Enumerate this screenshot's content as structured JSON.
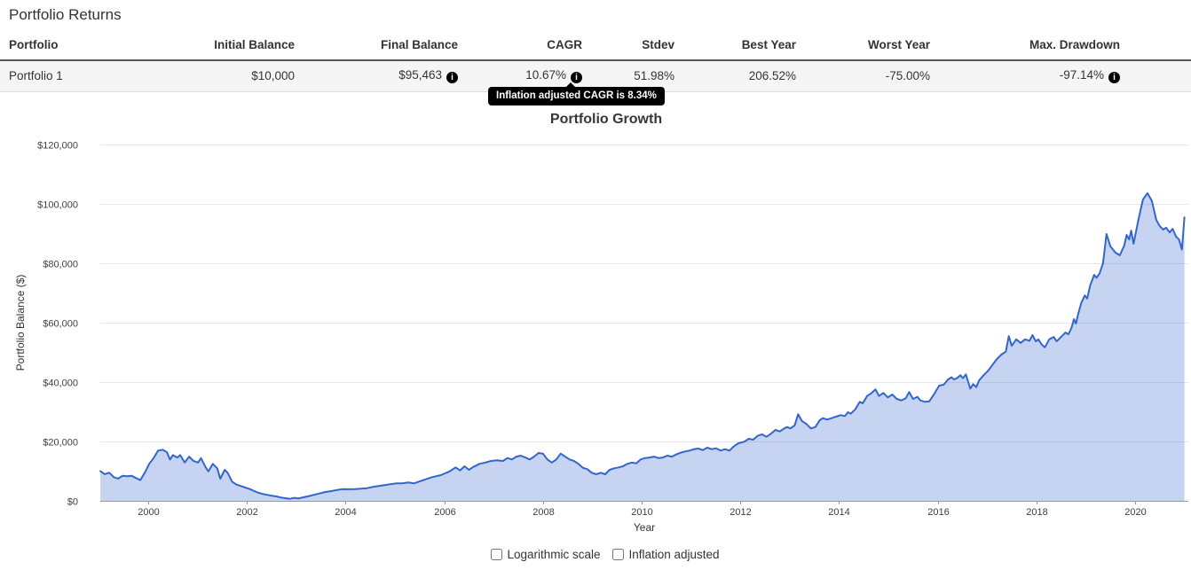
{
  "page": {
    "title": "Portfolio Returns"
  },
  "icons": {
    "info_glyph": "i"
  },
  "table": {
    "columns": [
      "Portfolio",
      "Initial Balance",
      "Final Balance",
      "CAGR",
      "Stdev",
      "Best Year",
      "Worst Year",
      "Max. Drawdown"
    ],
    "rows": [
      {
        "cells": [
          "Portfolio 1",
          "$10,000",
          "$95,463",
          "10.67%",
          "51.98%",
          "206.52%",
          "-75.00%",
          "-97.14%"
        ],
        "info_on": [
          2,
          3,
          7
        ]
      }
    ]
  },
  "tooltip": {
    "text": "Inflation adjusted CAGR is 8.34%"
  },
  "controls": {
    "logarithmic_label": "Logarithmic scale",
    "logarithmic_checked": false,
    "inflation_label": "Inflation adjusted",
    "inflation_checked": false
  },
  "chart_data": {
    "type": "area",
    "title": "Portfolio Growth",
    "xlabel": "Year",
    "ylabel": "Portfolio Balance ($)",
    "grid": true,
    "legend": "none",
    "ylim": [
      0,
      120000
    ],
    "xlim": [
      1999.03,
      2021.06
    ],
    "y_tick_values": [
      0,
      20000,
      40000,
      60000,
      80000,
      100000,
      120000
    ],
    "y_tick_labels": [
      "$0",
      "$20,000",
      "$40,000",
      "$60,000",
      "$80,000",
      "$100,000",
      "$120,000"
    ],
    "x_tick_values": [
      2000,
      2002,
      2004,
      2006,
      2008,
      2010,
      2012,
      2014,
      2016,
      2018,
      2020
    ],
    "line_color": "#3366cc",
    "fill_color": "rgba(51,102,204,0.28)",
    "series": [
      {
        "name": "Portfolio 1",
        "points": [
          [
            1999.03,
            10000
          ],
          [
            1999.12,
            9000
          ],
          [
            1999.21,
            9500
          ],
          [
            1999.3,
            8000
          ],
          [
            1999.39,
            7500
          ],
          [
            1999.48,
            8450
          ],
          [
            1999.57,
            8270
          ],
          [
            1999.66,
            8450
          ],
          [
            1999.75,
            7700
          ],
          [
            1999.84,
            7000
          ],
          [
            1999.93,
            9460
          ],
          [
            2000.02,
            12450
          ],
          [
            2000.11,
            14420
          ],
          [
            2000.2,
            16900
          ],
          [
            2000.29,
            17220
          ],
          [
            2000.38,
            16400
          ],
          [
            2000.44,
            13900
          ],
          [
            2000.5,
            15400
          ],
          [
            2000.59,
            14600
          ],
          [
            2000.65,
            15400
          ],
          [
            2000.74,
            12900
          ],
          [
            2000.83,
            14900
          ],
          [
            2000.92,
            13400
          ],
          [
            2001.01,
            12900
          ],
          [
            2001.07,
            14400
          ],
          [
            2001.16,
            11400
          ],
          [
            2001.22,
            9940
          ],
          [
            2001.31,
            12450
          ],
          [
            2001.4,
            10950
          ],
          [
            2001.46,
            7460
          ],
          [
            2001.55,
            10450
          ],
          [
            2001.61,
            9460
          ],
          [
            2001.7,
            6480
          ],
          [
            2001.79,
            5460
          ],
          [
            2001.88,
            4980
          ],
          [
            2001.97,
            4480
          ],
          [
            2002.06,
            3980
          ],
          [
            2002.15,
            3280
          ],
          [
            2002.24,
            2690
          ],
          [
            2002.33,
            2290
          ],
          [
            2002.42,
            2000
          ],
          [
            2002.51,
            1700
          ],
          [
            2002.6,
            1490
          ],
          [
            2002.69,
            1100
          ],
          [
            2002.78,
            900
          ],
          [
            2002.87,
            700
          ],
          [
            2002.96,
            1000
          ],
          [
            2003.05,
            800
          ],
          [
            2003.14,
            1190
          ],
          [
            2003.23,
            1490
          ],
          [
            2003.35,
            2000
          ],
          [
            2003.47,
            2490
          ],
          [
            2003.59,
            2990
          ],
          [
            2003.71,
            3280
          ],
          [
            2003.83,
            3670
          ],
          [
            2003.95,
            3970
          ],
          [
            2004.07,
            3900
          ],
          [
            2004.19,
            3970
          ],
          [
            2004.31,
            4100
          ],
          [
            2004.43,
            4270
          ],
          [
            2004.55,
            4690
          ],
          [
            2004.67,
            4980
          ],
          [
            2004.79,
            5280
          ],
          [
            2004.91,
            5600
          ],
          [
            2005.03,
            5880
          ],
          [
            2005.15,
            5880
          ],
          [
            2005.27,
            6180
          ],
          [
            2005.39,
            5900
          ],
          [
            2005.57,
            6960
          ],
          [
            2005.75,
            7970
          ],
          [
            2005.93,
            8660
          ],
          [
            2006.11,
            9940
          ],
          [
            2006.23,
            11250
          ],
          [
            2006.32,
            10240
          ],
          [
            2006.41,
            11640
          ],
          [
            2006.5,
            10450
          ],
          [
            2006.59,
            11430
          ],
          [
            2006.71,
            12450
          ],
          [
            2006.83,
            12900
          ],
          [
            2006.95,
            13430
          ],
          [
            2007.07,
            13640
          ],
          [
            2007.19,
            13430
          ],
          [
            2007.28,
            14420
          ],
          [
            2007.37,
            13930
          ],
          [
            2007.46,
            14900
          ],
          [
            2007.55,
            15220
          ],
          [
            2007.64,
            14600
          ],
          [
            2007.73,
            13930
          ],
          [
            2007.82,
            14900
          ],
          [
            2007.91,
            16120
          ],
          [
            2008.0,
            15920
          ],
          [
            2008.09,
            13930
          ],
          [
            2008.18,
            12900
          ],
          [
            2008.27,
            13930
          ],
          [
            2008.36,
            15920
          ],
          [
            2008.45,
            14900
          ],
          [
            2008.54,
            13930
          ],
          [
            2008.63,
            13430
          ],
          [
            2008.72,
            12450
          ],
          [
            2008.81,
            11140
          ],
          [
            2008.9,
            10660
          ],
          [
            2008.99,
            9460
          ],
          [
            2009.08,
            8960
          ],
          [
            2009.17,
            9460
          ],
          [
            2009.26,
            8960
          ],
          [
            2009.35,
            10450
          ],
          [
            2009.44,
            10950
          ],
          [
            2009.53,
            11250
          ],
          [
            2009.62,
            11640
          ],
          [
            2009.71,
            12450
          ],
          [
            2009.8,
            12900
          ],
          [
            2009.89,
            12640
          ],
          [
            2009.98,
            13930
          ],
          [
            2010.07,
            14420
          ],
          [
            2010.16,
            14600
          ],
          [
            2010.25,
            14900
          ],
          [
            2010.34,
            14420
          ],
          [
            2010.43,
            14600
          ],
          [
            2010.52,
            15220
          ],
          [
            2010.61,
            14900
          ],
          [
            2010.7,
            15610
          ],
          [
            2010.79,
            16210
          ],
          [
            2010.88,
            16620
          ],
          [
            2010.97,
            16920
          ],
          [
            2011.06,
            17400
          ],
          [
            2011.15,
            17610
          ],
          [
            2011.24,
            17100
          ],
          [
            2011.33,
            17910
          ],
          [
            2011.42,
            17400
          ],
          [
            2011.51,
            17700
          ],
          [
            2011.6,
            16920
          ],
          [
            2011.69,
            17400
          ],
          [
            2011.78,
            16920
          ],
          [
            2011.87,
            18400
          ],
          [
            2011.96,
            19400
          ],
          [
            2012.08,
            19900
          ],
          [
            2012.17,
            20900
          ],
          [
            2012.26,
            20600
          ],
          [
            2012.35,
            21900
          ],
          [
            2012.44,
            22390
          ],
          [
            2012.53,
            21590
          ],
          [
            2012.62,
            22590
          ],
          [
            2012.71,
            23880
          ],
          [
            2012.8,
            23380
          ],
          [
            2012.89,
            24380
          ],
          [
            2012.95,
            24870
          ],
          [
            2013.01,
            24380
          ],
          [
            2013.1,
            25370
          ],
          [
            2013.17,
            29160
          ],
          [
            2013.25,
            26870
          ],
          [
            2013.34,
            25880
          ],
          [
            2013.43,
            24380
          ],
          [
            2013.52,
            24870
          ],
          [
            2013.61,
            27170
          ],
          [
            2013.67,
            27860
          ],
          [
            2013.76,
            27370
          ],
          [
            2013.85,
            27860
          ],
          [
            2013.94,
            28360
          ],
          [
            2014.03,
            28860
          ],
          [
            2014.12,
            28560
          ],
          [
            2014.18,
            29850
          ],
          [
            2014.24,
            29350
          ],
          [
            2014.33,
            30850
          ],
          [
            2014.42,
            33330
          ],
          [
            2014.48,
            32840
          ],
          [
            2014.57,
            35320
          ],
          [
            2014.66,
            36320
          ],
          [
            2014.74,
            37520
          ],
          [
            2014.81,
            35320
          ],
          [
            2014.9,
            36320
          ],
          [
            2014.99,
            34830
          ],
          [
            2015.08,
            35820
          ],
          [
            2015.17,
            34330
          ],
          [
            2015.26,
            33830
          ],
          [
            2015.35,
            34530
          ],
          [
            2015.42,
            36620
          ],
          [
            2015.5,
            34330
          ],
          [
            2015.59,
            35020
          ],
          [
            2015.65,
            33830
          ],
          [
            2015.74,
            33330
          ],
          [
            2015.83,
            33500
          ],
          [
            2015.92,
            35800
          ],
          [
            2016.03,
            38800
          ],
          [
            2016.12,
            39100
          ],
          [
            2016.21,
            40900
          ],
          [
            2016.28,
            41600
          ],
          [
            2016.33,
            40900
          ],
          [
            2016.39,
            41300
          ],
          [
            2016.46,
            42300
          ],
          [
            2016.51,
            41300
          ],
          [
            2016.57,
            42600
          ],
          [
            2016.66,
            37800
          ],
          [
            2016.72,
            39300
          ],
          [
            2016.78,
            38300
          ],
          [
            2016.84,
            40600
          ],
          [
            2016.93,
            42300
          ],
          [
            2017.02,
            43800
          ],
          [
            2017.11,
            45800
          ],
          [
            2017.2,
            47760
          ],
          [
            2017.29,
            49250
          ],
          [
            2017.38,
            50250
          ],
          [
            2017.44,
            55500
          ],
          [
            2017.5,
            52200
          ],
          [
            2017.59,
            54400
          ],
          [
            2017.68,
            53200
          ],
          [
            2017.77,
            54400
          ],
          [
            2017.86,
            53900
          ],
          [
            2017.92,
            55800
          ],
          [
            2017.99,
            53700
          ],
          [
            2018.04,
            54400
          ],
          [
            2018.1,
            52800
          ],
          [
            2018.17,
            51700
          ],
          [
            2018.26,
            54400
          ],
          [
            2018.35,
            55200
          ],
          [
            2018.41,
            53700
          ],
          [
            2018.5,
            55200
          ],
          [
            2018.59,
            56700
          ],
          [
            2018.65,
            56100
          ],
          [
            2018.71,
            58200
          ],
          [
            2018.76,
            61200
          ],
          [
            2018.8,
            59700
          ],
          [
            2018.85,
            63200
          ],
          [
            2018.91,
            66650
          ],
          [
            2018.98,
            69150
          ],
          [
            2019.03,
            68150
          ],
          [
            2019.09,
            72600
          ],
          [
            2019.17,
            76100
          ],
          [
            2019.22,
            75100
          ],
          [
            2019.28,
            76600
          ],
          [
            2019.35,
            80100
          ],
          [
            2019.42,
            89850
          ],
          [
            2019.5,
            85700
          ],
          [
            2019.6,
            83600
          ],
          [
            2019.69,
            82700
          ],
          [
            2019.78,
            86000
          ],
          [
            2019.83,
            89550
          ],
          [
            2019.88,
            88000
          ],
          [
            2019.92,
            91000
          ],
          [
            2019.97,
            86600
          ],
          [
            2020.07,
            94900
          ],
          [
            2020.16,
            101500
          ],
          [
            2020.25,
            103600
          ],
          [
            2020.34,
            101000
          ],
          [
            2020.43,
            94600
          ],
          [
            2020.5,
            92500
          ],
          [
            2020.57,
            91300
          ],
          [
            2020.63,
            92000
          ],
          [
            2020.7,
            90400
          ],
          [
            2020.76,
            91600
          ],
          [
            2020.83,
            89000
          ],
          [
            2020.89,
            88000
          ],
          [
            2020.95,
            84600
          ],
          [
            2021.0,
            95463
          ]
        ]
      }
    ]
  }
}
